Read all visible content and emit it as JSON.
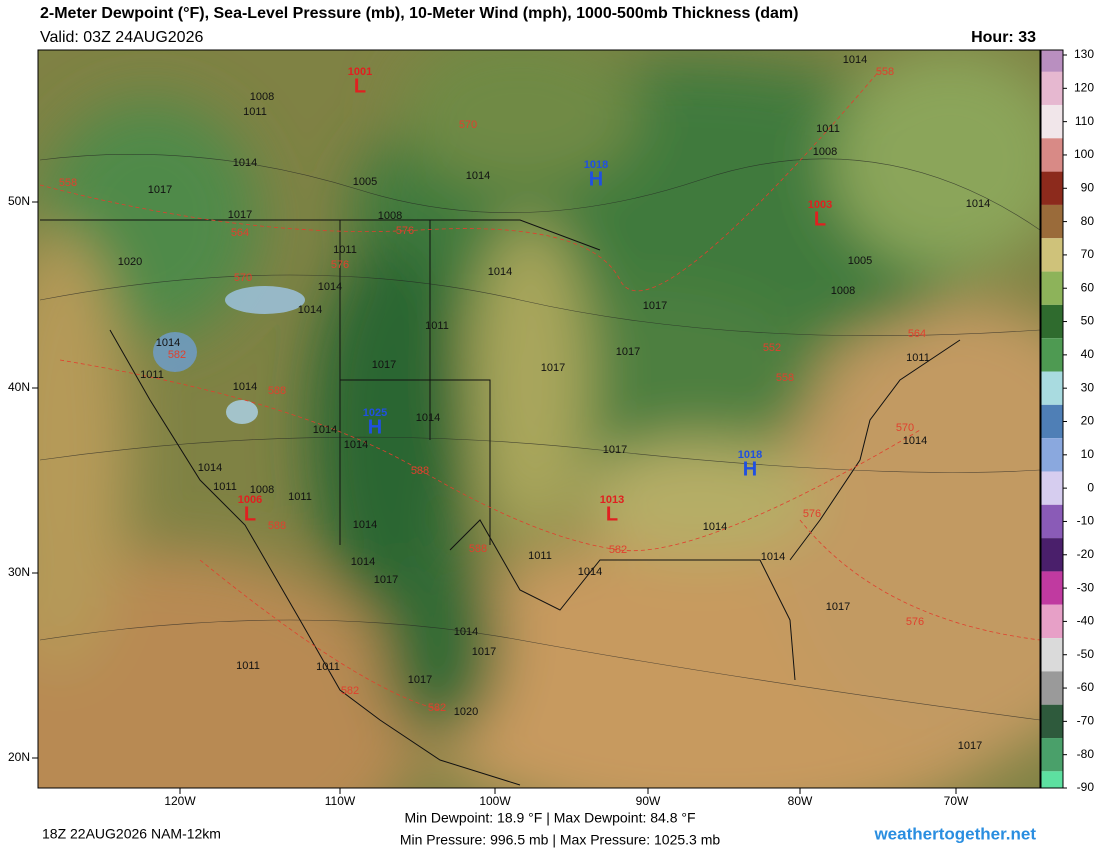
{
  "header": {
    "title": "2-Meter Dewpoint (°F), Sea-Level Pressure (mb), 10-Meter Wind (mph), 1000-500mb Thickness (dam)",
    "valid": "Valid: 03Z 24AUG2026",
    "hour": "Hour: 33"
  },
  "footer": {
    "run": "18Z 22AUG2026 NAM-12km",
    "dewpoint_range": "Min Dewpoint:  18.9 °F | Max Dewpoint:  84.8 °F",
    "pressure_range": "Min Pressure: 996.5 mb | Max Pressure: 1025.3 mb",
    "site": "weathertogether.net"
  },
  "latitude_labels": [
    "50N",
    "40N",
    "30N",
    "20N"
  ],
  "longitude_labels": [
    "120W",
    "110W",
    "100W",
    "90W",
    "80W",
    "70W"
  ],
  "colorbar": {
    "ticks": [
      130,
      120,
      110,
      100,
      90,
      80,
      70,
      60,
      50,
      40,
      30,
      20,
      10,
      0,
      -10,
      -20,
      -30,
      -40,
      -50,
      -60,
      -70,
      -80,
      -90
    ],
    "colors": [
      "#b98fc0",
      "#e6b8d0",
      "#f1e6ea",
      "#d88a86",
      "#8c2a1c",
      "#9a6b3a",
      "#cfc27a",
      "#8db35a",
      "#2f6b2e",
      "#4e9a52",
      "#a9dbe0",
      "#4f7fb6",
      "#8aa8de",
      "#d6cdef",
      "#8a5bb7",
      "#4a1f6b",
      "#c03aa0",
      "#e7a0c7",
      "#dadada",
      "#9a9a9a",
      "#2e5a3c",
      "#4aa06a",
      "#5de0a0"
    ]
  },
  "pressure_centers": [
    {
      "letter": "L",
      "value": "1001"
    },
    {
      "letter": "H",
      "value": "1018"
    },
    {
      "letter": "L",
      "value": "1003"
    },
    {
      "letter": "H",
      "value": "1025"
    },
    {
      "letter": "H",
      "value": "1018"
    },
    {
      "letter": "L",
      "value": "1006"
    },
    {
      "letter": "L",
      "value": "1013"
    }
  ],
  "isobar_labels": [
    "1008",
    "1011",
    "1014",
    "1017",
    "1005",
    "1008",
    "1017",
    "1011",
    "1020",
    "1014",
    "1014",
    "1014",
    "1011",
    "1014",
    "1017",
    "1011",
    "1014",
    "1017",
    "1017",
    "1017",
    "1014",
    "1014",
    "1014",
    "1014",
    "1011",
    "1008",
    "1011",
    "1014",
    "1014",
    "1017",
    "1017",
    "1014",
    "1014",
    "1011",
    "1014",
    "1014",
    "1017",
    "1017",
    "1020",
    "1011",
    "1011",
    "1017",
    "1014",
    "1011",
    "1008",
    "1005",
    "1008",
    "1011",
    "1014",
    "1014",
    "1017",
    "1014"
  ],
  "thickness_labels": [
    "570",
    "558",
    "564",
    "576",
    "576",
    "570",
    "582",
    "588",
    "588",
    "588",
    "588",
    "582",
    "582",
    "582",
    "576",
    "576",
    "570",
    "564",
    "552",
    "558",
    "558"
  ]
}
